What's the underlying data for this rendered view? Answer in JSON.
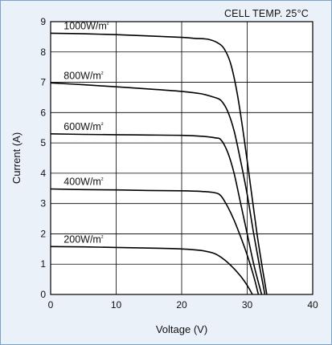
{
  "chart_data": {
    "type": "line",
    "annotation": "CELL TEMP. 25°C",
    "xlabel": "Voltage (V)",
    "ylabel": "Current (A)",
    "xlim": [
      0,
      40
    ],
    "ylim": [
      0,
      9
    ],
    "xticks": [
      0,
      10,
      20,
      30,
      40
    ],
    "yticks": [
      0,
      1,
      2,
      3,
      4,
      5,
      6,
      7,
      8,
      9
    ],
    "grid": true,
    "colors": {
      "line": "#000000",
      "plot_background": "#ffffff",
      "panel_background": "#ebf1f8",
      "frame": "#7aa3cc"
    },
    "series": [
      {
        "name": "1000W/m²",
        "points": [
          [
            0,
            8.62
          ],
          [
            5,
            8.6
          ],
          [
            10,
            8.57
          ],
          [
            15,
            8.53
          ],
          [
            20,
            8.48
          ],
          [
            22,
            8.45
          ],
          [
            24,
            8.42
          ],
          [
            25.5,
            8.3
          ],
          [
            26.5,
            8.1
          ],
          [
            27.5,
            7.6
          ],
          [
            28.5,
            6.6
          ],
          [
            29.5,
            5.2
          ],
          [
            30.5,
            3.6
          ],
          [
            31.5,
            2.0
          ],
          [
            32.3,
            0.9
          ],
          [
            33.0,
            0
          ]
        ]
      },
      {
        "name": "800W/m²",
        "points": [
          [
            0,
            6.98
          ],
          [
            5,
            6.92
          ],
          [
            10,
            6.85
          ],
          [
            15,
            6.78
          ],
          [
            20,
            6.7
          ],
          [
            23,
            6.62
          ],
          [
            25,
            6.5
          ],
          [
            26,
            6.4
          ],
          [
            27,
            6.05
          ],
          [
            28,
            5.4
          ],
          [
            29,
            4.4
          ],
          [
            30,
            3.3
          ],
          [
            31,
            2.0
          ],
          [
            32,
            0.8
          ],
          [
            32.7,
            0
          ]
        ]
      },
      {
        "name": "600W/m²",
        "points": [
          [
            0,
            5.3
          ],
          [
            5,
            5.28
          ],
          [
            10,
            5.27
          ],
          [
            15,
            5.26
          ],
          [
            20,
            5.25
          ],
          [
            23,
            5.22
          ],
          [
            25,
            5.17
          ],
          [
            26,
            5.1
          ],
          [
            27,
            4.7
          ],
          [
            28,
            4.0
          ],
          [
            29,
            3.0
          ],
          [
            30,
            2.0
          ],
          [
            31,
            1.0
          ],
          [
            32.2,
            0
          ]
        ]
      },
      {
        "name": "400W/m²",
        "points": [
          [
            0,
            3.48
          ],
          [
            5,
            3.46
          ],
          [
            10,
            3.45
          ],
          [
            15,
            3.43
          ],
          [
            20,
            3.42
          ],
          [
            23,
            3.4
          ],
          [
            25,
            3.36
          ],
          [
            26,
            3.25
          ],
          [
            27,
            2.9
          ],
          [
            28,
            2.45
          ],
          [
            29,
            1.9
          ],
          [
            30,
            1.3
          ],
          [
            31,
            0.6
          ],
          [
            31.7,
            0
          ]
        ]
      },
      {
        "name": "200W/m²",
        "points": [
          [
            0,
            1.58
          ],
          [
            5,
            1.57
          ],
          [
            10,
            1.55
          ],
          [
            15,
            1.53
          ],
          [
            20,
            1.5
          ],
          [
            23,
            1.45
          ],
          [
            25,
            1.35
          ],
          [
            26.5,
            1.15
          ],
          [
            28,
            0.85
          ],
          [
            29,
            0.6
          ],
          [
            30,
            0.3
          ],
          [
            30.8,
            0
          ]
        ]
      }
    ]
  }
}
